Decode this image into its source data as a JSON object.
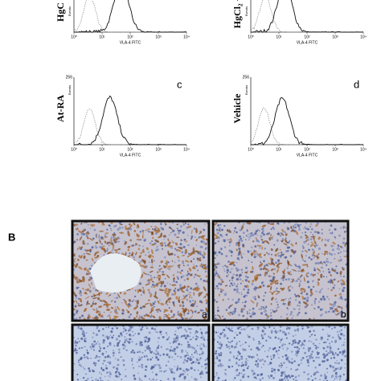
{
  "panel_a": {
    "histograms": [
      {
        "row_label": "HgC",
        "y_axis_label": "Events",
        "x_axis_label": "VLA-4 FITC",
        "x_ticks": [
          "10⁰",
          "10¹",
          "10²",
          "10³",
          "10⁴"
        ]
      },
      {
        "row_label": "HgCl₂ +",
        "y_axis_label": "Events",
        "x_axis_label": "VLA-4 FITC",
        "x_ticks": [
          "10⁰",
          "10¹",
          "10²",
          "10³",
          "10⁴"
        ]
      },
      {
        "row_label": "At-RA",
        "panel_label": "c",
        "y_max_label": "256",
        "y_axis_label": "Events",
        "x_axis_label": "VLA-4 FITC",
        "x_ticks": [
          "10⁰",
          "10¹",
          "10²",
          "10³",
          "10⁴"
        ]
      },
      {
        "row_label": "Vehicle",
        "panel_label": "d",
        "y_max_label": "256",
        "y_axis_label": "Events",
        "x_axis_label": "VLA-4 FITC",
        "x_ticks": [
          "10⁰",
          "10¹",
          "10²",
          "10³",
          "10⁴"
        ]
      }
    ]
  },
  "panel_b": {
    "label": "B",
    "images": [
      {
        "label": "a"
      },
      {
        "label": "b"
      },
      {},
      {}
    ]
  }
}
